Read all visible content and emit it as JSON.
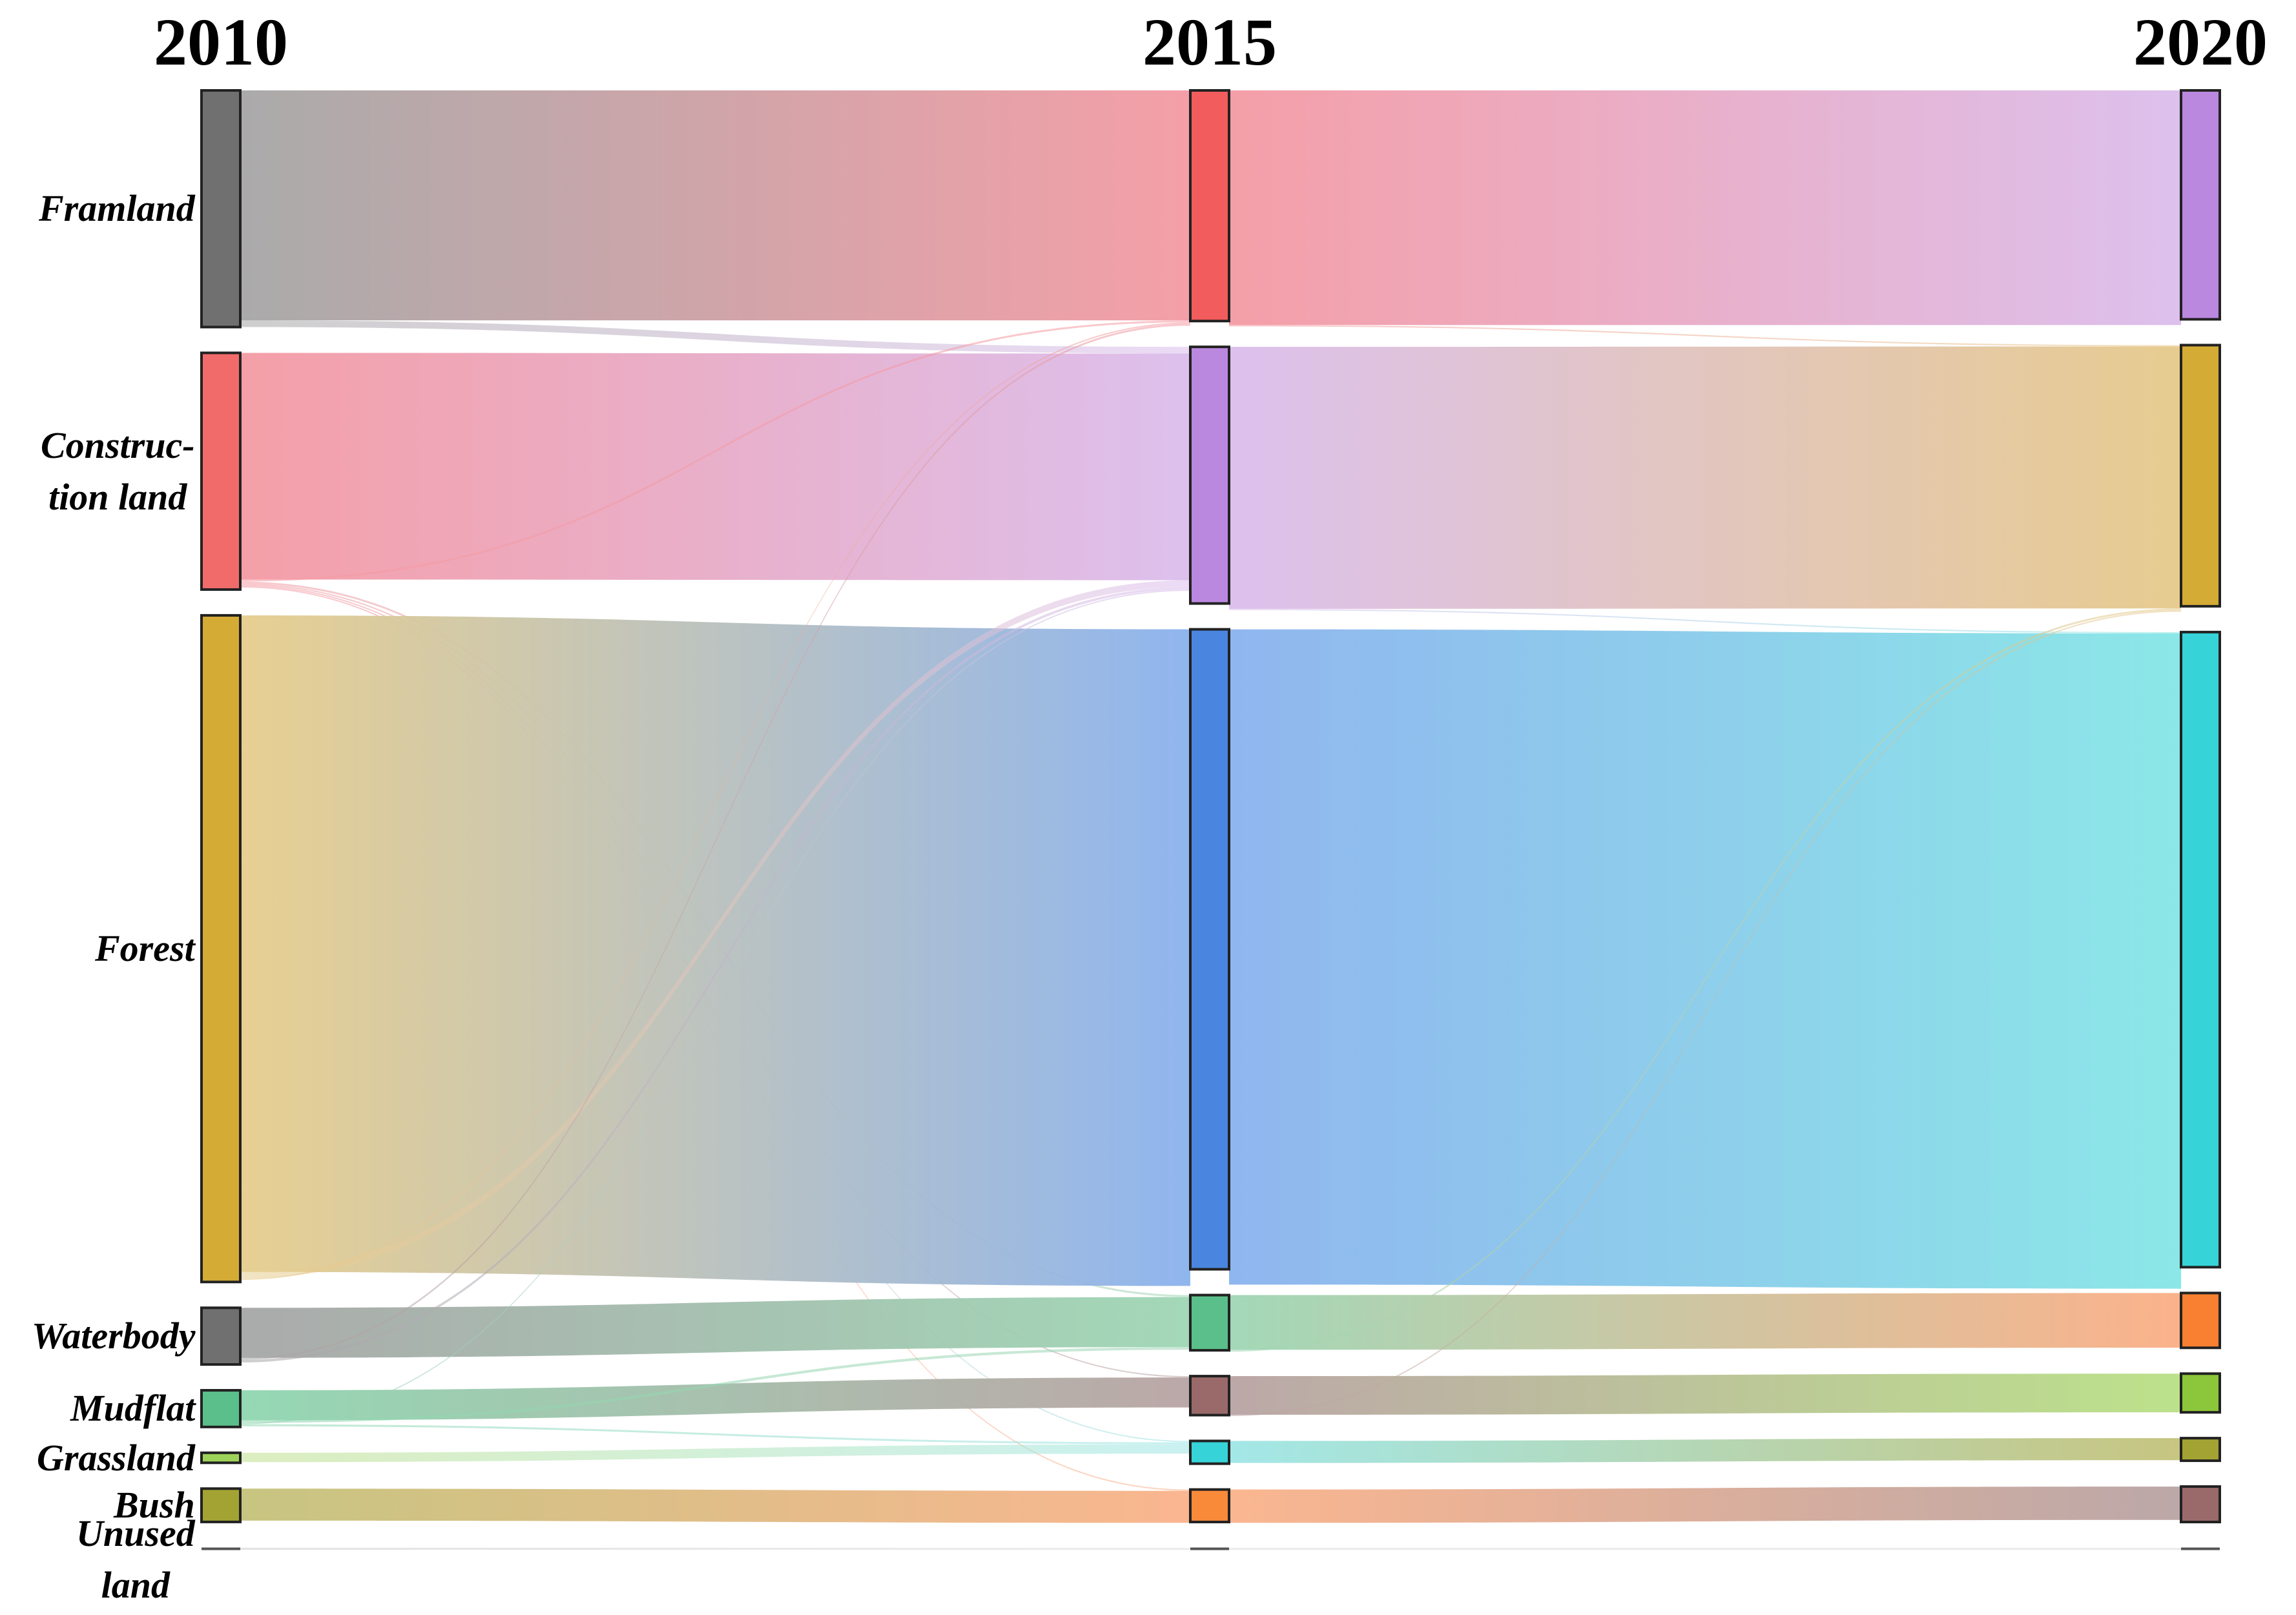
{
  "years": [
    "2010",
    "2015",
    "2020"
  ],
  "categories": {
    "farmland": {
      "lines": [
        "Framland"
      ]
    },
    "construction": {
      "lines": [
        "Construc-",
        "tion land"
      ]
    },
    "forest": {
      "lines": [
        "Forest"
      ]
    },
    "waterbody": {
      "lines": [
        "Waterbody"
      ]
    },
    "mudflat": {
      "lines": [
        "Mudflat"
      ]
    },
    "grassland": {
      "lines": [
        "Grassland"
      ]
    },
    "bush": {
      "lines": [
        "Bush"
      ]
    },
    "unused": {
      "lines": [
        "Unused",
        "land"
      ]
    }
  },
  "node_colors": {
    "2010": {
      "farmland": "#707070",
      "construction": "#f26b6b",
      "forest": "#d4ab35",
      "waterbody": "#707070",
      "mudflat": "#5abf8a",
      "grassland": "#9ed35a",
      "bush": "#a3a333",
      "unused": "#555555"
    },
    "2015": {
      "farmland": "#f25c5c",
      "construction": "#bb88e0",
      "forest": "#4a86e0",
      "waterbody": "#5abf8a",
      "mudflat": "#9a6a6a",
      "grassland": "#36d4d8",
      "bush": "#f98a3a",
      "unused": "#555555"
    },
    "2020": {
      "farmland": "#bb88e0",
      "construction": "#d4ab35",
      "forest": "#36d4d8",
      "waterbody": "#f98030",
      "mudflat": "#8cc63a",
      "grassland": "#a3a333",
      "bush": "#9a6a6a",
      "unused": "#555555"
    }
  },
  "band_colors": {
    "left": {
      "farmland": "#a6a6a6",
      "construction": "#f49aa3",
      "forest": "#e6cd8c",
      "waterbody": "#a6a6a6",
      "mudflat": "#8fd6b0",
      "grassland": "#bfe08c",
      "bush": "#c4c27a",
      "unused": "#cccccc"
    },
    "mid": {
      "farmland": "#f49aa3",
      "construction": "#dbbdec",
      "forest": "#8ab2ee",
      "waterbody": "#9ed6b4",
      "mudflat": "#b8a3a3",
      "grassland": "#9ee6e6",
      "bush": "#fab28a",
      "unused": "#dddddd"
    },
    "right": {
      "farmland": "#dbbdec",
      "construction": "#e6c98a",
      "forest": "#85e6e6",
      "waterbody": "#fbae85",
      "mudflat": "#b8e085",
      "grassland": "#c4c27a",
      "bush": "#b8a3a3",
      "unused": "#dddddd"
    }
  },
  "chart_data": {
    "type": "sankey",
    "stages": [
      "2010",
      "2015",
      "2020"
    ],
    "categories": [
      "Framland",
      "Construction land",
      "Forest",
      "Waterbody",
      "Mudflat",
      "Grassland",
      "Bush",
      "Unused land"
    ],
    "node_values": {
      "2010": [
        355,
        355,
        1000,
        85,
        55,
        15,
        50,
        3
      ],
      "2015": [
        355,
        395,
        985,
        85,
        60,
        35,
        50,
        3
      ],
      "2020": [
        355,
        405,
        985,
        85,
        60,
        35,
        55,
        3
      ]
    },
    "flows": [
      {
        "stage": "2010-2015",
        "from": "Framland",
        "to": "Framland",
        "value": 345
      },
      {
        "stage": "2010-2015",
        "from": "Framland",
        "to": "Construction land",
        "value": 10
      },
      {
        "stage": "2010-2015",
        "from": "Construction land",
        "to": "Construction land",
        "value": 340
      },
      {
        "stage": "2010-2015",
        "from": "Construction land",
        "to": "Framland",
        "value": 3
      },
      {
        "stage": "2010-2015",
        "from": "Construction land",
        "to": "Waterbody",
        "value": 3
      },
      {
        "stage": "2010-2015",
        "from": "Construction land",
        "to": "Mudflat",
        "value": 2
      },
      {
        "stage": "2010-2015",
        "from": "Construction land",
        "to": "Grassland",
        "value": 2
      },
      {
        "stage": "2010-2015",
        "from": "Construction land",
        "to": "Bush",
        "value": 2
      },
      {
        "stage": "2010-2015",
        "from": "Forest",
        "to": "Forest",
        "value": 985
      },
      {
        "stage": "2010-2015",
        "from": "Forest",
        "to": "Construction land",
        "value": 10
      },
      {
        "stage": "2010-2015",
        "from": "Forest",
        "to": "Framland",
        "value": 2
      },
      {
        "stage": "2010-2015",
        "from": "Waterbody",
        "to": "Waterbody",
        "value": 75
      },
      {
        "stage": "2010-2015",
        "from": "Waterbody",
        "to": "Framland",
        "value": 3
      },
      {
        "stage": "2010-2015",
        "from": "Waterbody",
        "to": "Construction land",
        "value": 4
      },
      {
        "stage": "2010-2015",
        "from": "Mudflat",
        "to": "Mudflat",
        "value": 45
      },
      {
        "stage": "2010-2015",
        "from": "Mudflat",
        "to": "Waterbody",
        "value": 4
      },
      {
        "stage": "2010-2015",
        "from": "Mudflat",
        "to": "Construction land",
        "value": 2
      },
      {
        "stage": "2010-2015",
        "from": "Mudflat",
        "to": "Grassland",
        "value": 3
      },
      {
        "stage": "2010-2015",
        "from": "Grassland",
        "to": "Grassland",
        "value": 14
      },
      {
        "stage": "2010-2015",
        "from": "Bush",
        "to": "Bush",
        "value": 48
      },
      {
        "stage": "2010-2015",
        "from": "Unused land",
        "to": "Unused land",
        "value": 3
      },
      {
        "stage": "2015-2020",
        "from": "Framland",
        "to": "Framland",
        "value": 352
      },
      {
        "stage": "2015-2020",
        "from": "Framland",
        "to": "Construction land",
        "value": 2
      },
      {
        "stage": "2015-2020",
        "from": "Construction land",
        "to": "Construction land",
        "value": 393
      },
      {
        "stage": "2015-2020",
        "from": "Construction land",
        "to": "Forest",
        "value": 2
      },
      {
        "stage": "2015-2020",
        "from": "Forest",
        "to": "Forest",
        "value": 983
      },
      {
        "stage": "2015-2020",
        "from": "Waterbody",
        "to": "Waterbody",
        "value": 82
      },
      {
        "stage": "2015-2020",
        "from": "Waterbody",
        "to": "Construction land",
        "value": 3
      },
      {
        "stage": "2015-2020",
        "from": "Mudflat",
        "to": "Mudflat",
        "value": 58
      },
      {
        "stage": "2015-2020",
        "from": "Mudflat",
        "to": "Construction land",
        "value": 2
      },
      {
        "stage": "2015-2020",
        "from": "Grassland",
        "to": "Grassland",
        "value": 33
      },
      {
        "stage": "2015-2020",
        "from": "Bush",
        "to": "Bush",
        "value": 50
      },
      {
        "stage": "2015-2020",
        "from": "Unused land",
        "to": "Unused land",
        "value": 3
      }
    ]
  }
}
